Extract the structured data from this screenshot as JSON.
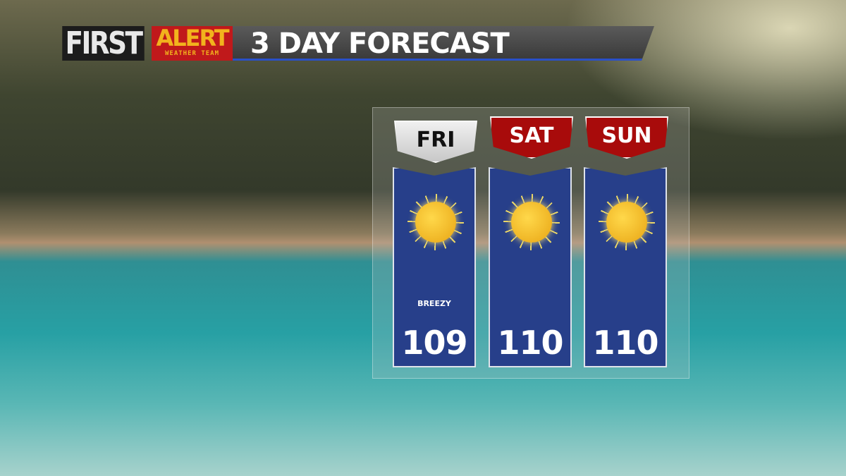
{
  "header": {
    "brand_first": "FIRST",
    "brand_alert": "ALERT",
    "brand_team": "WEATHER TEAM",
    "title": "3 DAY FORECAST"
  },
  "colors": {
    "panel": "#273f8a",
    "tab_selected": "#d9d9d9",
    "tab_default": "#a80b0b",
    "alert_red": "#c0191b",
    "alert_gold": "#f2b31d"
  },
  "days": [
    {
      "label": "FRI",
      "icon": "sun-icon",
      "note": "BREEZY",
      "high": "109",
      "selected": true
    },
    {
      "label": "SAT",
      "icon": "sun-icon",
      "note": "",
      "high": "110",
      "selected": false
    },
    {
      "label": "SUN",
      "icon": "sun-icon",
      "note": "",
      "high": "110",
      "selected": false
    }
  ]
}
